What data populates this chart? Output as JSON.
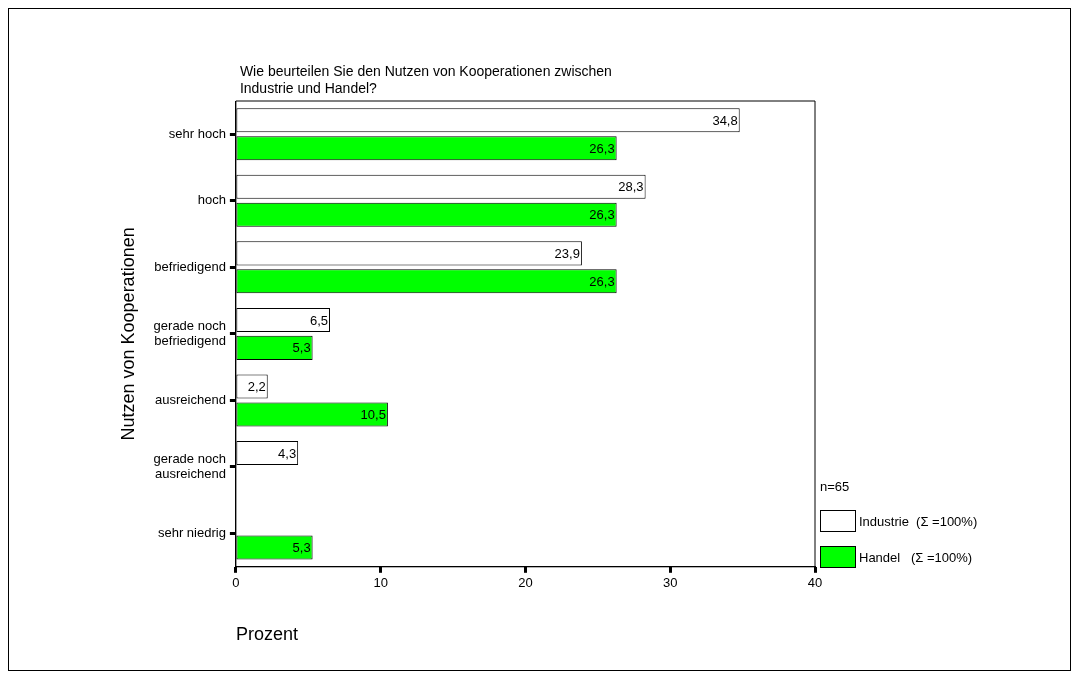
{
  "chart_data": {
    "type": "bar",
    "orientation": "horizontal",
    "title": "Wie beurteilen Sie den Nutzen von Kooperationen zwischen Industrie und Handel?",
    "xlabel": "Prozent",
    "ylabel": "Nutzen von Kooperationen",
    "categories": [
      "sehr hoch",
      "hoch",
      "befriedigend",
      "gerade noch befriedigend",
      "ausreichend",
      "gerade noch ausreichend",
      "sehr niedrig"
    ],
    "series": [
      {
        "name": "Industrie  (Σ =100%)",
        "color": "#ffffff",
        "values": [
          34.8,
          28.3,
          23.9,
          6.5,
          2.2,
          4.3,
          null
        ],
        "value_labels": [
          "34,8",
          "28,3",
          "23,9",
          "6,5",
          "2,2",
          "4,3",
          null
        ]
      },
      {
        "name": "Handel   (Σ =100%)",
        "color": "#00ff00",
        "values": [
          26.3,
          26.3,
          26.3,
          5.3,
          10.5,
          null,
          5.3
        ],
        "value_labels": [
          "26,3",
          "26,3",
          "26,3",
          "5,3",
          "10,5",
          null,
          "5,3"
        ]
      }
    ],
    "xlim": [
      0,
      40
    ],
    "xticks": [
      0,
      10,
      20,
      30,
      40
    ],
    "grid": false,
    "legend": "right",
    "annotations": [
      "n=65"
    ]
  }
}
